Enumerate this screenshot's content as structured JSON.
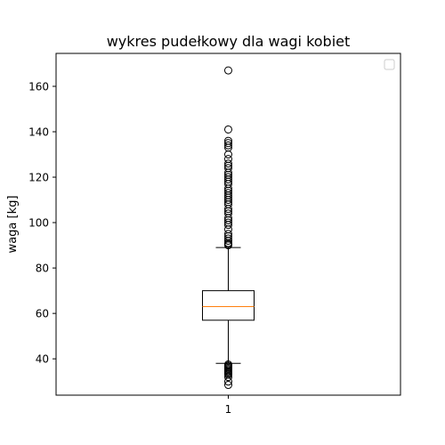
{
  "chart_data": {
    "type": "box",
    "title": "wykres pudełkowy dla wagi kobiet",
    "xlabel": "",
    "ylabel": "waga [kg]",
    "categories": [
      "1"
    ],
    "ylim": [
      24.0,
      174.5
    ],
    "yticks": [
      40,
      60,
      80,
      100,
      120,
      140,
      160
    ],
    "grid": false,
    "legend": "top-right, empty",
    "box": {
      "whisker_low": 38,
      "q1": 57,
      "median": 63,
      "q3": 70,
      "whisker_high": 89
    },
    "outliers": [
      167,
      141,
      136,
      135,
      134,
      133,
      130,
      128,
      126,
      125,
      124,
      122,
      121,
      120,
      119,
      118,
      117,
      115,
      114,
      113,
      112,
      111,
      110,
      109,
      108,
      106,
      105,
      104,
      102,
      101,
      100,
      99,
      97,
      95,
      94,
      93,
      92,
      91,
      90.5,
      90,
      37.5,
      37,
      36.5,
      36,
      35.5,
      35,
      34.5,
      34,
      33.5,
      33,
      32,
      30,
      28.5
    ],
    "colors": {
      "box": "#000000",
      "median": "#ff7f0e",
      "outlier": "#000000"
    }
  }
}
